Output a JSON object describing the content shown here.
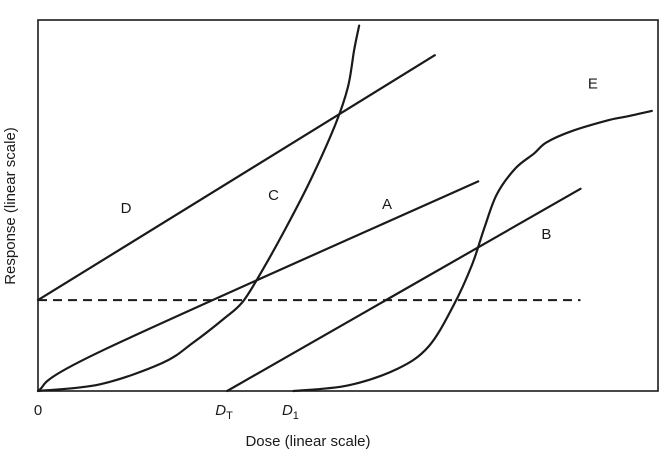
{
  "chart_data": {
    "type": "line",
    "title": "",
    "xlabel": "Dose (linear scale)",
    "ylabel": "Response (linear scale)",
    "xlim": [
      0,
      100
    ],
    "ylim": [
      0,
      100
    ],
    "grid": false,
    "legend": "none",
    "tick_labels": [
      {
        "id": "origin",
        "text": "0",
        "x": 0,
        "sub": ""
      },
      {
        "id": "dt",
        "text": "D",
        "x": 30.5,
        "sub": "T"
      },
      {
        "id": "d1",
        "text": "D",
        "x": 41.2,
        "sub": "1"
      }
    ],
    "threshold_line": {
      "y": 24.5,
      "x_start": 0,
      "x_end": 87.5,
      "style": "dashed"
    },
    "series": [
      {
        "name": "D",
        "label_at": [
          14.2,
          48.0
        ],
        "points": [
          [
            0,
            24.5
          ],
          [
            64,
            90.5
          ]
        ]
      },
      {
        "name": "C",
        "label_at": [
          38.0,
          51.5
        ],
        "points": [
          [
            0,
            0
          ],
          [
            10,
            1.8
          ],
          [
            20,
            7.5
          ],
          [
            25,
            13
          ],
          [
            30,
            19.5
          ],
          [
            33,
            24
          ],
          [
            36,
            32
          ],
          [
            40,
            44
          ],
          [
            44,
            57
          ],
          [
            48,
            72
          ],
          [
            50,
            82
          ],
          [
            51,
            92
          ],
          [
            51.8,
            98.5
          ]
        ]
      },
      {
        "name": "A",
        "label_at": [
          56.3,
          49.0
        ],
        "points": [
          [
            0,
            0
          ],
          [
            10.5,
            11
          ],
          [
            71,
            56.5
          ]
        ]
      },
      {
        "name": "B",
        "label_at": [
          82.0,
          41.0
        ],
        "points": [
          [
            30.5,
            0
          ],
          [
            87.5,
            54.5
          ]
        ]
      },
      {
        "name": "E",
        "label_at": [
          89.5,
          81.5
        ],
        "points": [
          [
            41.2,
            0
          ],
          [
            50,
            1.5
          ],
          [
            58,
            6
          ],
          [
            63,
            12
          ],
          [
            67,
            23
          ],
          [
            70,
            34
          ],
          [
            72,
            44
          ],
          [
            74,
            53
          ],
          [
            77,
            60
          ],
          [
            80,
            64
          ],
          [
            82,
            67
          ],
          [
            86,
            70
          ],
          [
            92,
            73
          ],
          [
            95,
            74
          ],
          [
            99,
            75.5
          ]
        ]
      }
    ]
  }
}
